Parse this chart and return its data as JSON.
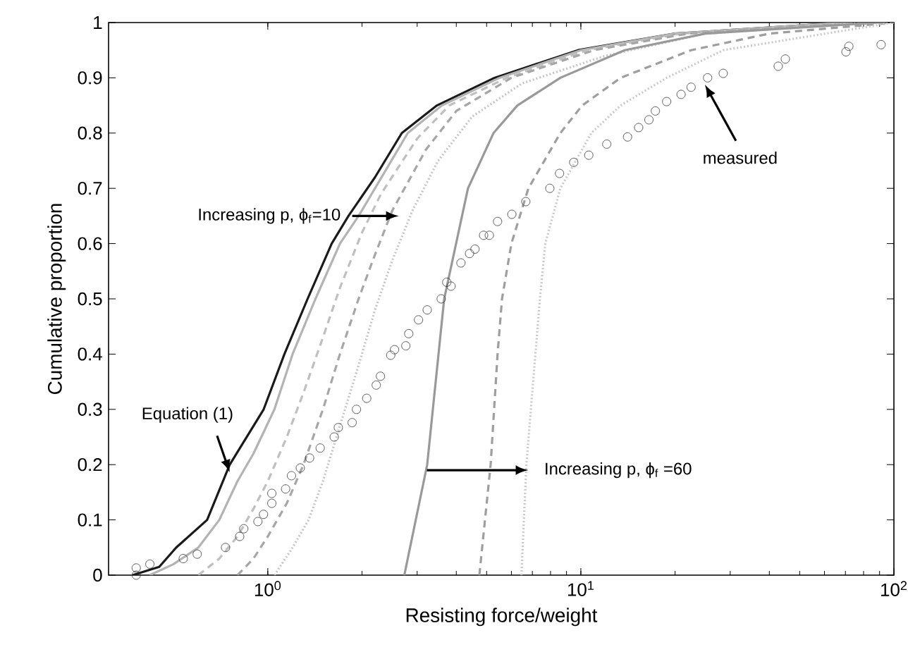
{
  "chart_data": {
    "type": "line",
    "xlabel": "Resisting force/weight",
    "ylabel": "Cumulative proportion",
    "log": "x",
    "xlim": [
      0.31,
      100
    ],
    "ylim": [
      0,
      1
    ],
    "xticks": [
      {
        "value": 1,
        "label": "10$^{0}$"
      },
      {
        "value": 10,
        "label": "10$^{1}$"
      },
      {
        "value": 100,
        "label": "10$^{2}$"
      }
    ],
    "yticks": [
      0,
      0.1,
      0.2,
      0.3,
      0.4,
      0.5,
      0.6,
      0.7,
      0.8,
      0.9,
      1
    ],
    "grid": false,
    "series": [
      {
        "color": "#1a1a1a",
        "line_style": "solid",
        "x": [
          0.37,
          0.45,
          0.51,
          0.64,
          0.756,
          0.97,
          1.13,
          1.34,
          1.6,
          1.81,
          2.2,
          2.68,
          3.47,
          5.3,
          9.8,
          20,
          70
        ],
        "values": [
          0,
          0.015,
          0.05,
          0.1,
          0.2,
          0.3,
          0.4,
          0.5,
          0.6,
          0.65,
          0.72,
          0.8,
          0.85,
          0.9,
          0.95,
          0.98,
          1
        ]
      },
      {
        "color": "#b3b3b3",
        "line_style": "solid",
        "x": [
          0.42,
          0.5,
          0.6,
          0.7,
          0.8,
          0.9,
          1.05,
          1.2,
          1.42,
          1.7,
          1.95,
          2.8,
          3.6,
          5.5,
          10,
          20,
          70
        ],
        "values": [
          0,
          0.02,
          0.05,
          0.1,
          0.17,
          0.22,
          0.3,
          0.4,
          0.5,
          0.6,
          0.65,
          0.8,
          0.85,
          0.9,
          0.95,
          0.98,
          1
        ]
      },
      {
        "color": "#bfbfbf",
        "line_style": "dashed",
        "x": [
          0.6,
          0.7,
          0.8,
          0.9,
          1.0,
          1.15,
          1.3,
          1.5,
          1.7,
          2.0,
          2.3,
          3.0,
          3.8,
          5.8,
          10.5,
          21,
          75
        ],
        "values": [
          0,
          0.03,
          0.07,
          0.12,
          0.17,
          0.25,
          0.33,
          0.43,
          0.52,
          0.62,
          0.69,
          0.79,
          0.85,
          0.9,
          0.95,
          0.98,
          1
        ]
      },
      {
        "color": "#a6a6a6",
        "line_style": "dashed",
        "x": [
          0.8,
          0.9,
          1.0,
          1.15,
          1.3,
          1.5,
          1.7,
          1.95,
          2.2,
          2.5,
          3.2,
          4.0,
          6.0,
          11,
          22,
          80
        ],
        "values": [
          0,
          0.03,
          0.07,
          0.13,
          0.2,
          0.3,
          0.4,
          0.5,
          0.58,
          0.66,
          0.77,
          0.84,
          0.9,
          0.95,
          0.98,
          1
        ]
      },
      {
        "color": "#c4c4c4",
        "line_style": "dotted",
        "x": [
          1.05,
          1.2,
          1.35,
          1.5,
          1.7,
          1.95,
          2.2,
          2.5,
          2.9,
          3.5,
          4.5,
          6.5,
          12,
          25,
          85
        ],
        "values": [
          0,
          0.05,
          0.1,
          0.17,
          0.27,
          0.38,
          0.48,
          0.57,
          0.66,
          0.75,
          0.83,
          0.89,
          0.94,
          0.98,
          1
        ]
      },
      {
        "color": "#999999",
        "line_style": "solid",
        "x": [
          2.73,
          3.23,
          3.66,
          4.36,
          5.26,
          6.27,
          8.6,
          13.8,
          25,
          90
        ],
        "values": [
          0,
          0.2,
          0.5,
          0.7,
          0.8,
          0.85,
          0.9,
          0.95,
          0.98,
          1
        ]
      },
      {
        "color": "#9e9e9e",
        "line_style": "dashed",
        "x": [
          4.74,
          5.15,
          5.42,
          5.6,
          6.0,
          6.8,
          8.6,
          10.1,
          13.4,
          22.5,
          40,
          100
        ],
        "values": [
          0,
          0.2,
          0.4,
          0.5,
          0.6,
          0.7,
          0.8,
          0.85,
          0.9,
          0.95,
          0.98,
          1
        ]
      },
      {
        "color": "#c8c8c8",
        "line_style": "dotted",
        "x": [
          6.46,
          6.7,
          7.4,
          7.7,
          8.6,
          10.8,
          13.4,
          18.8,
          28.5,
          100
        ],
        "values": [
          0,
          0.2,
          0.5,
          0.6,
          0.7,
          0.8,
          0.85,
          0.9,
          0.95,
          1
        ]
      },
      {
        "type": "scatter",
        "color": "#333333",
        "marker": "circle",
        "x": [
          0.38,
          0.38,
          0.42,
          0.537,
          0.595,
          0.733,
          0.813,
          0.838,
          0.93,
          0.969,
          1.03,
          1.03,
          1.14,
          1.19,
          1.27,
          1.36,
          1.47,
          1.63,
          1.68,
          1.86,
          1.92,
          2.07,
          2.22,
          2.29,
          2.47,
          2.54,
          2.76,
          2.82,
          3.03,
          3.23,
          3.58,
          3.73,
          3.85,
          4.14,
          4.41,
          4.59,
          4.89,
          5.1,
          5.42,
          6.02,
          6.67,
          7.96,
          8.55,
          9.49,
          10.6,
          12.1,
          14.1,
          15.3,
          16.5,
          17.3,
          18.8,
          20.9,
          22.5,
          25.4,
          28.5,
          42.7,
          45,
          70.3,
          71.8,
          91
        ],
        "values": [
          0.013,
          0,
          0.02,
          0.03,
          0.038,
          0.05,
          0.07,
          0.084,
          0.097,
          0.11,
          0.13,
          0.148,
          0.156,
          0.18,
          0.194,
          0.212,
          0.23,
          0.25,
          0.267,
          0.276,
          0.3,
          0.32,
          0.344,
          0.36,
          0.398,
          0.408,
          0.415,
          0.437,
          0.462,
          0.48,
          0.5,
          0.53,
          0.523,
          0.565,
          0.582,
          0.59,
          0.615,
          0.615,
          0.64,
          0.653,
          0.676,
          0.7,
          0.727,
          0.747,
          0.76,
          0.78,
          0.793,
          0.81,
          0.824,
          0.84,
          0.857,
          0.87,
          0.883,
          0.9,
          0.908,
          0.921,
          0.934,
          0.947,
          0.957,
          0.96
        ]
      }
    ],
    "annotations": [
      {
        "text": "Equation (1)",
        "x": 0.756,
        "y": 0.186
      },
      {
        "text": "Increasing p,  ϕ$_{f}$=10",
        "x": 2.62,
        "y": 0.65
      },
      {
        "text": "Increasing p,  ϕ$_{f}$ =60",
        "x": 6.8,
        "y": 0.19
      },
      {
        "text": "measured",
        "x": 24.9,
        "y": 0.888
      }
    ]
  }
}
